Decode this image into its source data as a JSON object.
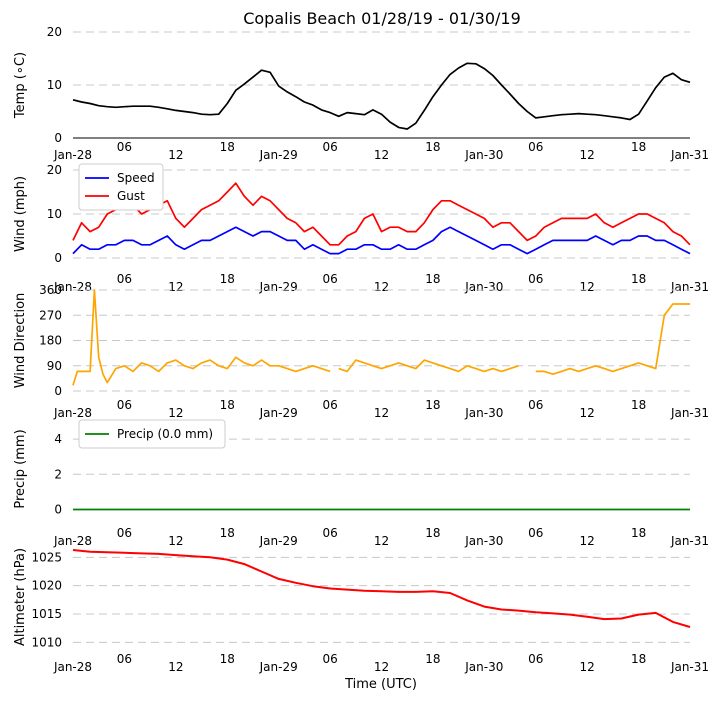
{
  "title": "Copalis Beach 01/28/19 - 01/30/19",
  "xlabel": "Time (UTC)",
  "x_range": [
    "2019-01-28T00:00",
    "2019-01-31T00:00"
  ],
  "x_ticks": [
    "Jan-28",
    "06",
    "12",
    "18",
    "Jan-29",
    "06",
    "12",
    "18",
    "Jan-30",
    "06",
    "12",
    "18",
    "Jan-31"
  ],
  "chart_data": [
    {
      "type": "line",
      "ylabel": "Temp (∘C)",
      "ylim": [
        0,
        20
      ],
      "yticks": [
        "0",
        "10",
        "20"
      ],
      "grid": true,
      "series": [
        {
          "color": "#000000",
          "x": [
            0,
            1,
            2,
            3,
            4,
            5,
            6,
            7,
            8,
            9,
            10,
            11,
            12,
            13,
            14,
            15,
            16,
            17,
            18,
            19,
            20,
            21,
            22,
            23,
            24,
            25,
            26,
            27,
            28,
            29,
            30,
            31,
            32,
            33,
            34,
            35,
            36,
            37,
            38,
            39,
            40,
            41,
            42,
            43,
            44,
            45,
            46,
            47,
            48,
            49,
            50,
            51,
            52,
            53,
            54,
            55,
            56,
            57,
            58,
            59,
            60,
            61,
            62,
            63,
            64,
            65,
            66,
            67,
            68,
            69,
            70,
            71,
            72
          ],
          "values": [
            7.2,
            6.8,
            6.5,
            6.1,
            5.9,
            5.8,
            5.9,
            6.0,
            6.0,
            6.0,
            5.8,
            5.5,
            5.2,
            5.0,
            4.8,
            4.5,
            4.4,
            4.5,
            6.5,
            9.0,
            10.2,
            11.5,
            12.8,
            12.4,
            9.8,
            8.7,
            7.8,
            6.8,
            6.2,
            5.3,
            4.8,
            4.1,
            4.8,
            4.6,
            4.4,
            5.3,
            4.5,
            3.0,
            2.0,
            1.7,
            2.8,
            5.2,
            7.8,
            10.0,
            12.0,
            13.2,
            14.1,
            14.0,
            13.1,
            11.8,
            10.0,
            8.3,
            6.5,
            5.0,
            3.8,
            4.0,
            4.2,
            4.4,
            4.5,
            4.6,
            4.5,
            4.4,
            4.2,
            4.0,
            3.8,
            3.5,
            4.5,
            7.0,
            9.5,
            11.5,
            12.2,
            11.0,
            10.5
          ]
        }
      ]
    },
    {
      "type": "line",
      "ylabel": "Wind (mph)",
      "ylim": [
        0,
        20
      ],
      "yticks": [
        "0",
        "10",
        "20"
      ],
      "grid": true,
      "legend": "top-left",
      "series": [
        {
          "name": "Speed",
          "color": "#0000ff",
          "x": [
            0,
            1,
            2,
            3,
            4,
            5,
            6,
            7,
            8,
            9,
            10,
            11,
            12,
            13,
            14,
            15,
            16,
            17,
            18,
            19,
            20,
            21,
            22,
            23,
            24,
            25,
            26,
            27,
            28,
            29,
            30,
            31,
            32,
            33,
            34,
            35,
            36,
            37,
            38,
            39,
            40,
            41,
            42,
            43,
            44,
            45,
            46,
            47,
            48,
            49,
            50,
            51,
            52,
            53,
            54,
            55,
            56,
            57,
            58,
            59,
            60,
            61,
            62,
            63,
            64,
            65,
            66,
            67,
            68,
            69,
            70,
            71,
            72
          ],
          "values": [
            1,
            3,
            2,
            2,
            3,
            3,
            4,
            4,
            3,
            3,
            4,
            5,
            3,
            2,
            3,
            4,
            4,
            5,
            6,
            7,
            6,
            5,
            6,
            6,
            5,
            4,
            4,
            2,
            3,
            2,
            1,
            1,
            2,
            2,
            3,
            3,
            2,
            2,
            3,
            2,
            2,
            3,
            4,
            6,
            7,
            6,
            5,
            4,
            3,
            2,
            3,
            3,
            2,
            1,
            2,
            3,
            4,
            4,
            4,
            4,
            4,
            5,
            4,
            3,
            4,
            4,
            5,
            5,
            4,
            4,
            3,
            2,
            1
          ]
        },
        {
          "name": "Gust",
          "color": "#ff0000",
          "x": [
            0,
            1,
            2,
            3,
            4,
            5,
            6,
            7,
            8,
            9,
            10,
            11,
            12,
            13,
            14,
            15,
            16,
            17,
            18,
            19,
            20,
            21,
            22,
            23,
            24,
            25,
            26,
            27,
            28,
            29,
            30,
            31,
            32,
            33,
            34,
            35,
            36,
            37,
            38,
            39,
            40,
            41,
            42,
            43,
            44,
            45,
            46,
            47,
            48,
            49,
            50,
            51,
            52,
            53,
            54,
            55,
            56,
            57,
            58,
            59,
            60,
            61,
            62,
            63,
            64,
            65,
            66,
            67,
            68,
            69,
            70,
            71,
            72
          ],
          "values": [
            4,
            8,
            6,
            7,
            10,
            11,
            12,
            12,
            10,
            11,
            12,
            13,
            9,
            7,
            9,
            11,
            12,
            13,
            15,
            17,
            14,
            12,
            14,
            13,
            11,
            9,
            8,
            6,
            7,
            5,
            3,
            3,
            5,
            6,
            9,
            10,
            6,
            7,
            7,
            6,
            6,
            8,
            11,
            13,
            13,
            12,
            11,
            10,
            9,
            7,
            8,
            8,
            6,
            4,
            5,
            7,
            8,
            9,
            9,
            9,
            9,
            10,
            8,
            7,
            8,
            9,
            10,
            10,
            9,
            8,
            6,
            5,
            3
          ]
        }
      ]
    },
    {
      "type": "line",
      "ylabel": "Wind Direction",
      "ylim": [
        0,
        360
      ],
      "yticks": [
        "0",
        "90",
        "180",
        "270",
        "360"
      ],
      "grid": true,
      "series": [
        {
          "color": "#ffa500",
          "x": [
            0,
            0.5,
            1,
            2,
            2.5,
            3,
            3.5,
            4,
            5,
            6,
            7,
            8,
            9,
            10,
            11,
            12,
            13,
            14,
            15,
            16,
            17,
            18,
            19,
            20,
            21,
            22,
            23,
            24,
            25,
            26,
            27,
            28,
            29,
            30,
            null,
            31,
            32,
            33,
            34,
            35,
            36,
            37,
            38,
            39,
            40,
            41,
            42,
            43,
            44,
            45,
            46,
            47,
            48,
            49,
            50,
            51,
            52,
            53,
            54,
            55,
            56,
            57,
            58,
            59,
            60,
            61,
            62,
            63,
            64,
            65,
            66,
            67,
            68,
            69,
            70,
            71,
            72
          ],
          "values": [
            20,
            70,
            70,
            70,
            360,
            120,
            60,
            30,
            80,
            90,
            70,
            100,
            90,
            70,
            100,
            110,
            90,
            80,
            100,
            110,
            90,
            80,
            120,
            100,
            90,
            110,
            90,
            90,
            80,
            70,
            80,
            90,
            80,
            70,
            null,
            80,
            70,
            110,
            100,
            90,
            80,
            90,
            100,
            90,
            80,
            110,
            100,
            90,
            80,
            70,
            90,
            80,
            70,
            80,
            70,
            80,
            90,
            null,
            70,
            70,
            60,
            70,
            80,
            70,
            80,
            90,
            80,
            70,
            80,
            90,
            100,
            90,
            80,
            270,
            310,
            310,
            310
          ]
        }
      ]
    },
    {
      "type": "line",
      "ylabel": "Precip (mm)",
      "ylim": [
        -0.2,
        4.8
      ],
      "yticks": [
        "0",
        "2",
        "4"
      ],
      "grid": true,
      "legend": "top-left",
      "series": [
        {
          "name": "Precip (0.0 mm)",
          "color": "#008000",
          "x": [
            0,
            72
          ],
          "values": [
            0,
            0
          ]
        }
      ]
    },
    {
      "type": "line",
      "ylabel": "Altimeter (hPa)",
      "ylim": [
        1009,
        1027
      ],
      "yticks": [
        "1010",
        "1015",
        "1020",
        "1025"
      ],
      "grid": true,
      "series": [
        {
          "color": "#ff0000",
          "x": [
            0,
            2,
            4,
            6,
            8,
            10,
            12,
            14,
            16,
            18,
            20,
            22,
            24,
            26,
            28,
            30,
            32,
            34,
            36,
            38,
            40,
            42,
            44,
            46,
            48,
            50,
            52,
            54,
            56,
            58,
            60,
            62,
            64,
            66,
            68,
            70,
            72
          ],
          "values": [
            1026.3,
            1026.0,
            1025.9,
            1025.8,
            1025.7,
            1025.6,
            1025.4,
            1025.2,
            1025.0,
            1024.6,
            1023.8,
            1022.5,
            1021.2,
            1020.5,
            1019.9,
            1019.5,
            1019.3,
            1019.1,
            1019.0,
            1018.9,
            1018.9,
            1019.0,
            1018.7,
            1017.4,
            1016.3,
            1015.8,
            1015.6,
            1015.3,
            1015.1,
            1014.9,
            1014.5,
            1014.1,
            1014.2,
            1014.9,
            1015.2,
            1013.6,
            1012.7
          ]
        }
      ]
    }
  ]
}
